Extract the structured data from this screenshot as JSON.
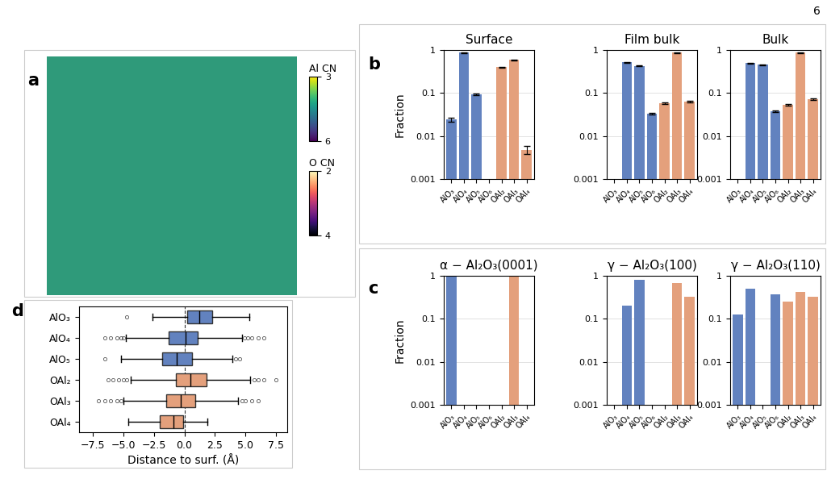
{
  "page_number": "6",
  "chart_data": [
    {
      "type": "image",
      "panel": "a",
      "colorbars": [
        {
          "label": "Al CN",
          "range": [
            3,
            6
          ],
          "ticks": [
            3,
            6
          ]
        },
        {
          "label": "O CN",
          "range": [
            2,
            4
          ],
          "ticks": [
            2,
            4
          ]
        }
      ]
    },
    {
      "type": "bar",
      "panel": "b",
      "title": "Surface",
      "y_label": "Fraction",
      "categories": [
        "AlO₃",
        "AlO₄",
        "AlO₅",
        "AlO₆",
        "OAl₂",
        "OAl₃",
        "OAl₄"
      ],
      "values": [
        0.024,
        0.87,
        0.095,
        null,
        0.4,
        0.59,
        0.0048
      ],
      "errors": [
        0.003,
        0.02,
        0.004,
        null,
        0.01,
        0.012,
        0.001
      ],
      "colors": [
        "#6282bf",
        "#6282bf",
        "#6282bf",
        "#6282bf",
        "#e4a07c",
        "#e4a07c",
        "#e4a07c"
      ],
      "log": "y",
      "ylim": [
        0.001,
        1
      ],
      "yticks": [
        0.001,
        0.01,
        0.1,
        1
      ],
      "grid": true
    },
    {
      "type": "bar",
      "title": "Film bulk",
      "categories": [
        "AlO₃",
        "AlO₄",
        "AlO₅",
        "AlO₆",
        "OAl₂",
        "OAl₃",
        "OAl₄"
      ],
      "values": [
        null,
        0.52,
        0.43,
        0.033,
        0.058,
        0.87,
        0.063
      ],
      "errors": [
        null,
        0.01,
        0.01,
        0.001,
        0.002,
        0.015,
        0.002
      ],
      "colors": [
        "#6282bf",
        "#6282bf",
        "#6282bf",
        "#6282bf",
        "#e4a07c",
        "#e4a07c",
        "#e4a07c"
      ],
      "log": "y",
      "ylim": [
        0.001,
        1
      ],
      "yticks": [
        0.001,
        0.01,
        0.1,
        1
      ],
      "grid": true
    },
    {
      "type": "bar",
      "title": "Bulk",
      "categories": [
        "AlO₃",
        "AlO₄",
        "AlO₅",
        "AlO₆",
        "OAl₂",
        "OAl₃",
        "OAl₄"
      ],
      "values": [
        null,
        0.5,
        0.45,
        0.038,
        0.053,
        0.87,
        0.072
      ],
      "errors": [
        null,
        0.01,
        0.01,
        0.002,
        0.003,
        0.015,
        0.003
      ],
      "colors": [
        "#6282bf",
        "#6282bf",
        "#6282bf",
        "#6282bf",
        "#e4a07c",
        "#e4a07c",
        "#e4a07c"
      ],
      "log": "y",
      "ylim": [
        0.001,
        1
      ],
      "yticks": [
        0.001,
        0.01,
        0.1,
        1
      ],
      "grid": true
    },
    {
      "type": "bar",
      "panel": "c",
      "title": "α − Al₂O₃(0001)",
      "y_label": "Fraction",
      "categories": [
        "AlO₃",
        "AlO₄",
        "AlO₅",
        "AlO₆",
        "OAl₂",
        "OAl₃",
        "OAl₄"
      ],
      "values": [
        1.0,
        null,
        null,
        null,
        null,
        1.0,
        null
      ],
      "colors": [
        "#6282bf",
        "#6282bf",
        "#6282bf",
        "#6282bf",
        "#e4a07c",
        "#e4a07c",
        "#e4a07c"
      ],
      "log": "y",
      "ylim": [
        0.001,
        1
      ],
      "yticks": [
        0.001,
        0.01,
        0.1,
        1
      ],
      "grid": true
    },
    {
      "type": "bar",
      "title": "γ − Al₂O₃(100)",
      "categories": [
        "AlO₃",
        "AlO₄",
        "AlO₅",
        "AlO₆",
        "OAl₂",
        "OAl₃",
        "OAl₄"
      ],
      "values": [
        null,
        0.2,
        0.8,
        null,
        null,
        0.67,
        0.33
      ],
      "colors": [
        "#6282bf",
        "#6282bf",
        "#6282bf",
        "#6282bf",
        "#e4a07c",
        "#e4a07c",
        "#e4a07c"
      ],
      "log": "y",
      "ylim": [
        0.001,
        1
      ],
      "yticks": [
        0.001,
        0.01,
        0.1,
        1
      ],
      "grid": true
    },
    {
      "type": "bar",
      "title": "γ − Al₂O₃(110)",
      "categories": [
        "AlO₃",
        "AlO₄",
        "AlO₅",
        "AlO₆",
        "OAl₂",
        "OAl₃",
        "OAl₄"
      ],
      "values": [
        0.125,
        0.5,
        null,
        0.375,
        0.25,
        0.42,
        0.33
      ],
      "colors": [
        "#6282bf",
        "#6282bf",
        "#6282bf",
        "#6282bf",
        "#e4a07c",
        "#e4a07c",
        "#e4a07c"
      ],
      "log": "y",
      "ylim": [
        0.001,
        1
      ],
      "yticks": [
        0.001,
        0.01,
        0.1,
        1
      ],
      "grid": true
    },
    {
      "type": "box",
      "panel": "d",
      "orientation": "horizontal",
      "x_label": "Distance to surf. (Å)",
      "categories": [
        "AlO₃",
        "AlO₄",
        "AlO₅",
        "OAl₂",
        "OAl₃",
        "OAl₄"
      ],
      "colors": [
        "#6282bf",
        "#6282bf",
        "#6282bf",
        "#e4a07c",
        "#e4a07c",
        "#e4a07c"
      ],
      "boxes": [
        {
          "whislo": -2.6,
          "q1": 0.2,
          "med": 1.2,
          "q3": 2.3,
          "whishi": 5.3,
          "fliers": [
            -4.7
          ]
        },
        {
          "whislo": -4.8,
          "q1": -1.3,
          "med": 0.1,
          "q3": 1.1,
          "whishi": 4.7,
          "fliers": [
            -6.5,
            -6.0,
            -5.5,
            -5.2,
            -5.0,
            4.9,
            5.2,
            5.5,
            6.0,
            6.5
          ]
        },
        {
          "whislo": -5.2,
          "q1": -1.8,
          "med": -0.6,
          "q3": 0.6,
          "whishi": 3.9,
          "fliers": [
            -6.5,
            4.2,
            4.5
          ]
        },
        {
          "whislo": -4.4,
          "q1": -0.7,
          "med": 0.5,
          "q3": 1.8,
          "whishi": 5.4,
          "fliers": [
            -6.2,
            -5.8,
            -5.4,
            -5.0,
            -4.7,
            5.7,
            6.0,
            6.5,
            7.5
          ]
        },
        {
          "whislo": -5.0,
          "q1": -1.5,
          "med": -0.3,
          "q3": 0.9,
          "whishi": 4.4,
          "fliers": [
            -7.0,
            -6.5,
            -6.0,
            -5.5,
            -5.2,
            4.7,
            5.0,
            5.5,
            6.0
          ]
        },
        {
          "whislo": -4.6,
          "q1": -2.0,
          "med": -0.9,
          "q3": -0.1,
          "whishi": 1.9,
          "fliers": []
        }
      ],
      "vline": 0,
      "xlim": [
        -8.6,
        8.4
      ],
      "xticks": [
        {
          "value": -7.5,
          "label": "−7.5"
        },
        {
          "value": -5.0,
          "label": "−5.0"
        },
        {
          "value": -2.5,
          "label": "−2.5"
        },
        {
          "value": 0.0,
          "label": "0.0"
        },
        {
          "value": 2.5,
          "label": "2.5"
        },
        {
          "value": 5.0,
          "label": "5.0"
        },
        {
          "value": 7.5,
          "label": "7.5"
        }
      ]
    }
  ]
}
